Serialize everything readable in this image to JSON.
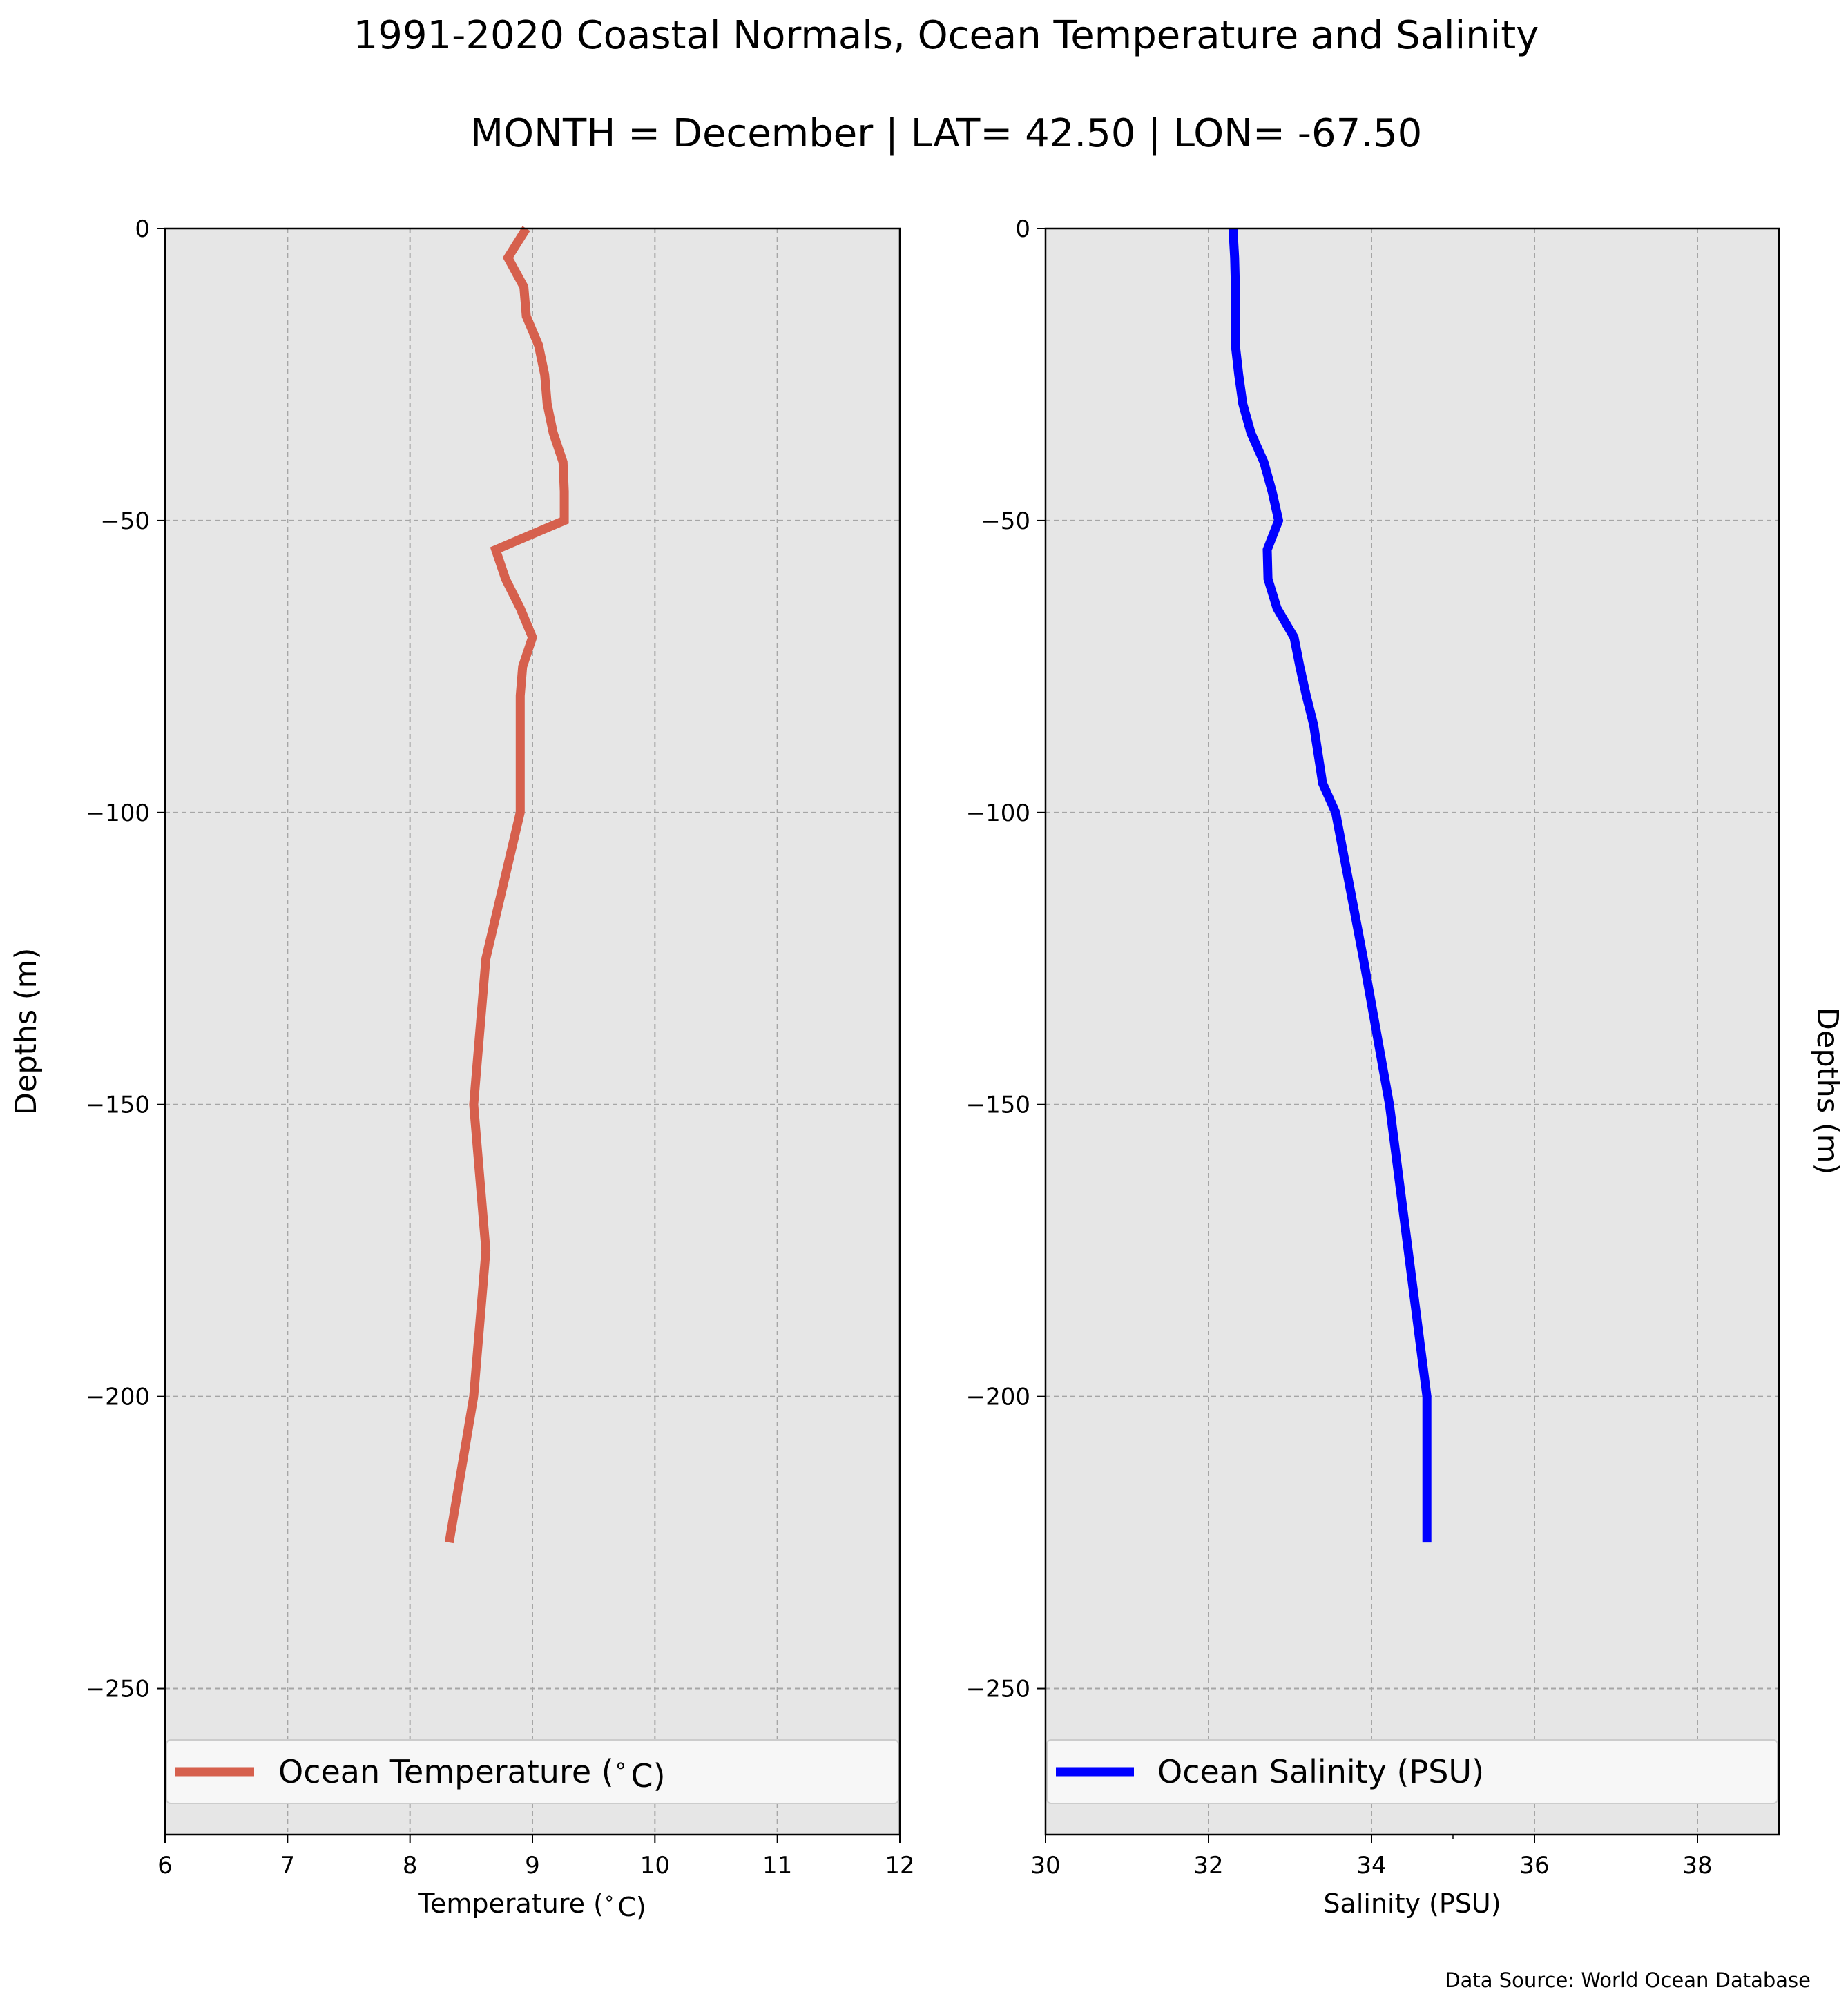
{
  "title": "1991-2020 Coastal Normals, Ocean Temperature and Salinity",
  "subtitle": "MONTH = December | LAT= 42.50 | LON= -67.50",
  "source": "Data Source: World Ocean Database",
  "colors": {
    "figure_background": "#ffffff",
    "axes_background": "#e6e6e6",
    "grid": "#a6a6a6",
    "temperature_line": "#d6604d",
    "salinity_line": "#0000ff",
    "legend_background": "#f7f7f7"
  },
  "chart_data": [
    {
      "type": "line",
      "xlabel": "Temperature ($^\\circ$C)",
      "ylabel": "Depths (m)",
      "xlim": [
        6,
        12
      ],
      "ylim": [
        -275,
        0
      ],
      "xticks": [
        "6",
        "7",
        "8",
        "9",
        "10",
        "11",
        "12"
      ],
      "yticks": [
        "0",
        "−50",
        "−100",
        "−150",
        "−200",
        "−250"
      ],
      "grid": true,
      "legend": "bottom",
      "legend_label": "Ocean Temperature ($^\\circ$C)",
      "series": [
        {
          "name": "Ocean Temperature ($^\\circ$C)",
          "color": "#d6604d",
          "x": [
            8.95,
            8.8,
            8.93,
            8.95,
            9.05,
            9.1,
            9.12,
            9.17,
            9.25,
            9.26,
            9.26,
            8.7,
            8.78,
            8.9,
            9.0,
            8.92,
            8.9,
            8.9,
            8.9,
            8.9,
            8.62,
            8.52,
            8.62,
            8.52,
            8.32
          ],
          "y": [
            0,
            -5,
            -10,
            -15,
            -20,
            -25,
            -30,
            -35,
            -40,
            -45,
            -50,
            -55,
            -60,
            -65,
            -70,
            -75,
            -80,
            -85,
            -95,
            -100,
            -125,
            -150,
            -175,
            -200,
            -225
          ]
        }
      ]
    },
    {
      "type": "line",
      "xlabel": "Salinity (PSU)",
      "ylabel": "Depths (m)",
      "xlim": [
        30,
        39
      ],
      "ylim": [
        -275,
        0
      ],
      "xticks": [
        "30",
        "32",
        "34",
        "36",
        "38"
      ],
      "yticks": [
        "0",
        "−50",
        "−100",
        "−150",
        "−200",
        "−250"
      ],
      "grid": true,
      "legend": "bottom",
      "legend_label": "Ocean Salinity (PSU)",
      "series": [
        {
          "name": "Ocean Salinity (PSU)",
          "color": "#0000ff",
          "x": [
            32.3,
            32.32,
            32.33,
            32.33,
            32.33,
            32.37,
            32.42,
            32.52,
            32.68,
            32.78,
            32.86,
            32.72,
            32.73,
            32.84,
            33.05,
            33.12,
            33.2,
            33.29,
            33.4,
            33.56,
            33.9,
            34.22,
            34.45,
            34.68,
            34.68
          ],
          "y": [
            0,
            -5,
            -10,
            -15,
            -20,
            -25,
            -30,
            -35,
            -40,
            -45,
            -50,
            -55,
            -60,
            -65,
            -70,
            -75,
            -80,
            -85,
            -95,
            -100,
            -125,
            -150,
            -175,
            -200,
            -225
          ]
        }
      ]
    }
  ]
}
